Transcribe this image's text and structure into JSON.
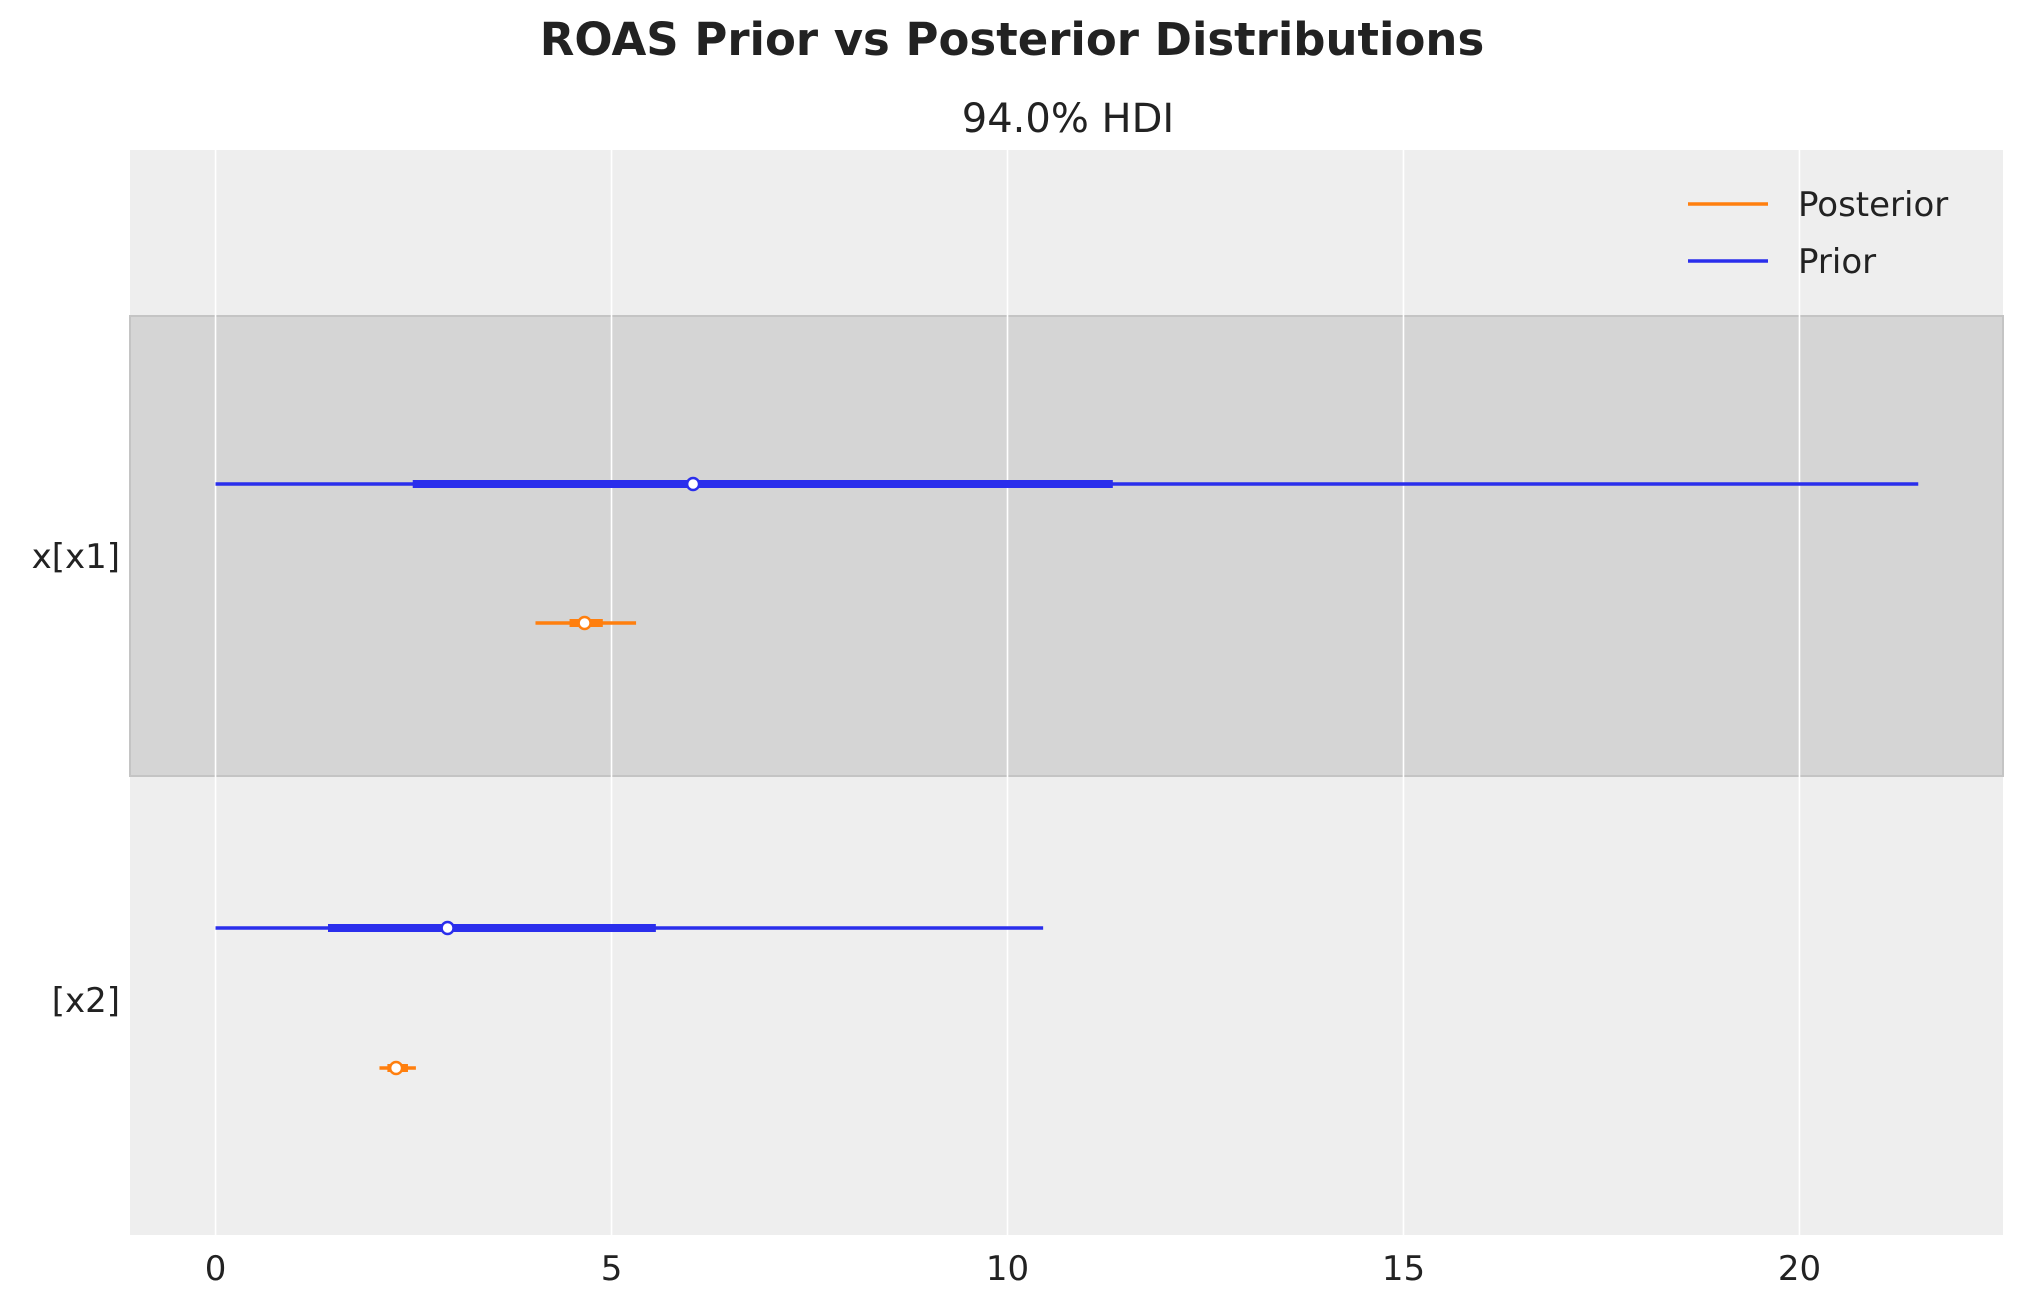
{
  "chart_data": {
    "type": "forest",
    "title": "ROAS Prior vs Posterior Distributions",
    "subtitle": "94.0% HDI",
    "xlim": [
      -1.08,
      22.57
    ],
    "xticks": [
      0,
      5,
      10,
      15,
      20
    ],
    "grid": true,
    "legend": {
      "placement": "top-right",
      "entries": [
        {
          "name": "Posterior",
          "color": "#ff7f0e"
        },
        {
          "name": "Prior",
          "color": "#2a2eec"
        }
      ]
    },
    "rows": [
      {
        "label": "x[x1]",
        "highlighted": true,
        "prior": {
          "hdi94": [
            0.0,
            21.5
          ],
          "iqr": [
            2.49,
            11.33
          ],
          "median": 6.03
        },
        "posterior": {
          "hdi94": [
            4.04,
            5.31
          ],
          "iqr": [
            4.47,
            4.89
          ],
          "median": 4.66
        }
      },
      {
        "label": "[x2]",
        "highlighted": false,
        "prior": {
          "hdi94": [
            0.0,
            10.45
          ],
          "iqr": [
            1.42,
            5.56
          ],
          "median": 2.93
        },
        "posterior": {
          "hdi94": [
            2.07,
            2.53
          ],
          "iqr": [
            2.17,
            2.43
          ],
          "median": 2.28
        }
      }
    ]
  }
}
